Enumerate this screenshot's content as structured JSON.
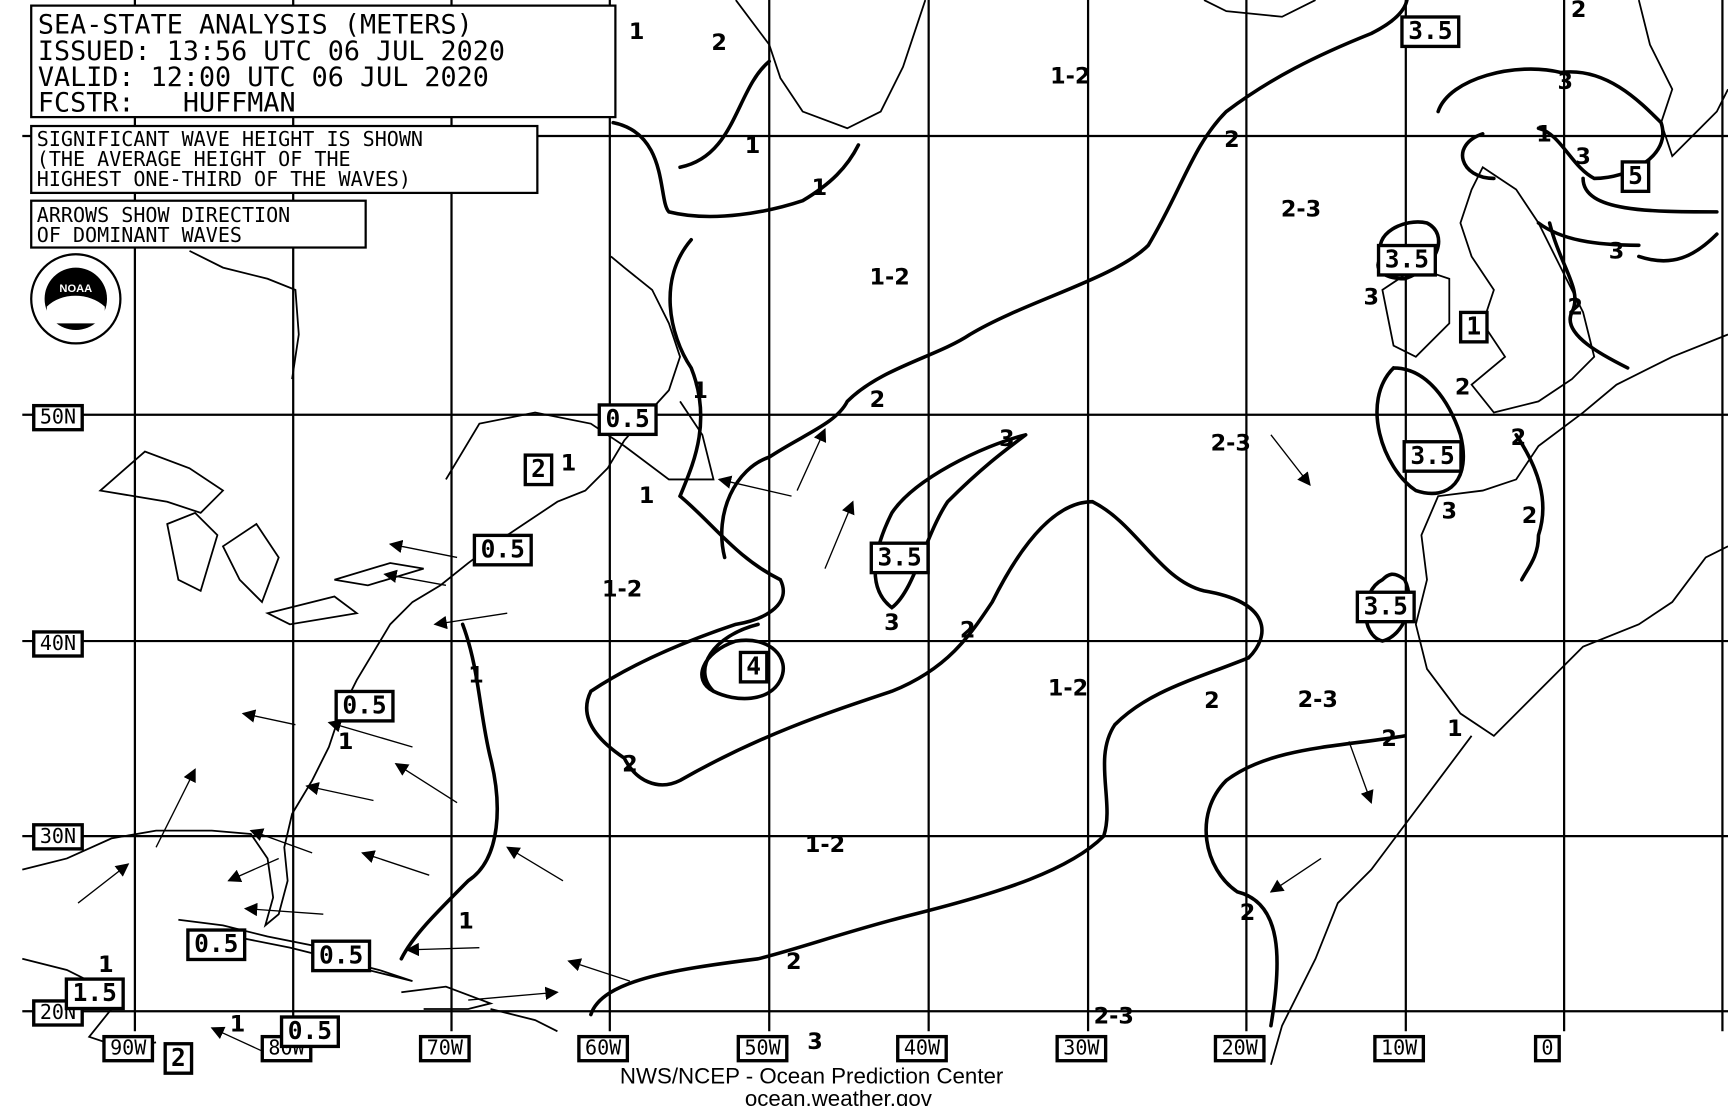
{
  "header": {
    "lines": [
      "SEA-STATE ANALYSIS (METERS)",
      "ISSUED:  13:56 UTC 06 JUL 2020",
      "VALID:   12:00 UTC 06 JUL 2020",
      "FCSTR:   HUFFMAN"
    ]
  },
  "legend": {
    "wave_height": [
      "SIGNIFICANT WAVE HEIGHT IS SHOWN",
      "(THE AVERAGE HEIGHT OF THE",
      "HIGHEST ONE-THIRD OF THE WAVES)"
    ],
    "arrows": [
      "ARROWS SHOW DIRECTION",
      "OF DOMINANT WAVES"
    ]
  },
  "logo": {
    "name": "noaa-logo",
    "text": "NOAA"
  },
  "latitude_labels": [
    "50N",
    "40N",
    "30N",
    "20N"
  ],
  "longitude_labels": [
    "90W",
    "80W",
    "70W",
    "60W",
    "50W",
    "40W",
    "30W",
    "20W",
    "10W",
    "0"
  ],
  "contour_labels": [
    "1",
    "2",
    "1",
    "1",
    "2",
    "1",
    "1",
    "1",
    "2",
    "3",
    "3",
    "2",
    "2",
    "2",
    "2",
    "1",
    "1",
    "2",
    "3",
    "1",
    "3",
    "3",
    "2",
    "2",
    "3",
    "2",
    "2",
    "2",
    "3",
    "3",
    "2",
    "1",
    "1",
    "1",
    "1",
    "4"
  ],
  "region_labels": [
    "1-2",
    "1-2",
    "1-2",
    "1-2",
    "1-2",
    "2-3",
    "2-3",
    "2-3",
    "2-3"
  ],
  "boxed_values": [
    "3.5",
    "5",
    "3.5",
    "1",
    "3.5",
    "3.5",
    "0.5",
    "2",
    "0.5",
    "3.5",
    "4",
    "0.5",
    "0.5",
    "0.5",
    "1.5",
    "2",
    "0.5"
  ],
  "footer": {
    "line1": "NWS/NCEP - Ocean Prediction Center",
    "line2": "ocean.weather.gov"
  },
  "colors": {
    "ink": "#000000",
    "background": "#ffffff"
  }
}
